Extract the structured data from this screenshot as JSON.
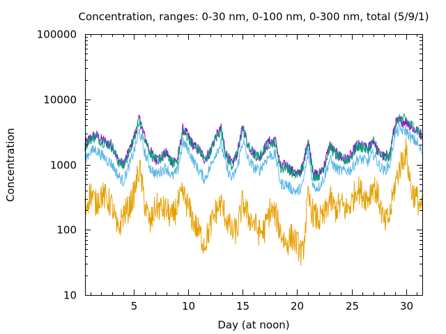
{
  "chart_data": {
    "type": "line",
    "title": "Concentration, ranges: 0-30 nm, 0-100 nm, 0-300 nm, total (5/9/1)",
    "xlabel": "Day (at noon)",
    "ylabel": "Concentration",
    "xlim": [
      0.5,
      31.5
    ],
    "ylim": [
      10,
      100000
    ],
    "y_scale": "log",
    "grid": false,
    "legend": "none",
    "x_ticks": [
      5,
      10,
      15,
      20,
      25,
      30
    ],
    "x_tick_labels": [
      "5",
      "10",
      "15",
      "20",
      "25",
      "30"
    ],
    "y_ticks": [
      10,
      100,
      1000,
      10000,
      100000
    ],
    "y_tick_labels": [
      "10",
      "100",
      "1000",
      "10000",
      "100000"
    ],
    "x": [
      0.5,
      1,
      1.5,
      2,
      2.5,
      3,
      3.5,
      4,
      4.5,
      5,
      5.5,
      6,
      6.5,
      7,
      7.5,
      8,
      8.5,
      9,
      9.5,
      10,
      10.5,
      11,
      11.5,
      12,
      12.5,
      13,
      13.5,
      14,
      14.5,
      15,
      15.5,
      16,
      16.5,
      17,
      17.5,
      18,
      18.5,
      19,
      19.5,
      20,
      20.5,
      21,
      21.5,
      22,
      22.5,
      23,
      23.5,
      24,
      24.5,
      25,
      25.5,
      26,
      26.5,
      27,
      27.5,
      28,
      28.5,
      29,
      29.5,
      30,
      30.5,
      31,
      31.5
    ],
    "series": [
      {
        "color": "#9400d3",
        "values": [
          2000,
          2600,
          2800,
          2400,
          2200,
          2000,
          1200,
          1000,
          1500,
          2600,
          5000,
          2600,
          1600,
          1200,
          1300,
          1500,
          1100,
          1200,
          3500,
          2700,
          1900,
          1700,
          1200,
          1600,
          2600,
          3500,
          1400,
          1000,
          1500,
          3800,
          2000,
          1500,
          1300,
          1800,
          2300,
          2300,
          900,
          1000,
          800,
          700,
          900,
          2500,
          700,
          700,
          1000,
          2000,
          1500,
          1300,
          1200,
          1400,
          2000,
          1900,
          1700,
          2400,
          1500,
          1300,
          1400,
          4300,
          4700,
          4600,
          3800,
          3300,
          2800
        ]
      },
      {
        "color": "#009e73",
        "values": [
          1900,
          2500,
          2700,
          2300,
          2100,
          1900,
          1150,
          950,
          1450,
          2500,
          4900,
          2500,
          1500,
          1150,
          1250,
          1450,
          1050,
          1150,
          3400,
          2600,
          1850,
          1650,
          1150,
          1550,
          2500,
          3400,
          1350,
          950,
          1450,
          3700,
          1900,
          1450,
          1250,
          1750,
          2200,
          2200,
          850,
          950,
          760,
          680,
          850,
          2400,
          680,
          680,
          950,
          1900,
          1450,
          1250,
          1150,
          1350,
          1900,
          1850,
          1650,
          2300,
          1450,
          1250,
          1350,
          4200,
          5000,
          4800,
          4000,
          3500,
          2700
        ]
      },
      {
        "color": "#56b4e9",
        "values": [
          1200,
          1600,
          1700,
          1400,
          1200,
          1000,
          700,
          550,
          900,
          1600,
          3300,
          1500,
          900,
          700,
          800,
          900,
          650,
          800,
          2200,
          1700,
          1100,
          800,
          600,
          900,
          1500,
          2100,
          900,
          600,
          900,
          2400,
          1200,
          900,
          800,
          1100,
          1400,
          1400,
          500,
          500,
          420,
          380,
          480,
          1500,
          450,
          450,
          650,
          1200,
          900,
          800,
          800,
          850,
          1200,
          1200,
          1100,
          1500,
          1000,
          800,
          1000,
          3000,
          3400,
          3300,
          2500,
          2200,
          1500
        ]
      },
      {
        "color": "#e69f00",
        "values": [
          200,
          380,
          250,
          350,
          300,
          230,
          90,
          170,
          210,
          350,
          900,
          250,
          120,
          230,
          210,
          200,
          150,
          240,
          350,
          220,
          130,
          90,
          60,
          110,
          190,
          250,
          150,
          90,
          100,
          270,
          160,
          130,
          90,
          100,
          200,
          170,
          90,
          60,
          80,
          60,
          40,
          300,
          170,
          140,
          160,
          300,
          200,
          250,
          200,
          260,
          450,
          350,
          300,
          500,
          300,
          120,
          160,
          500,
          1000,
          1600,
          400,
          300,
          200
        ]
      }
    ]
  }
}
